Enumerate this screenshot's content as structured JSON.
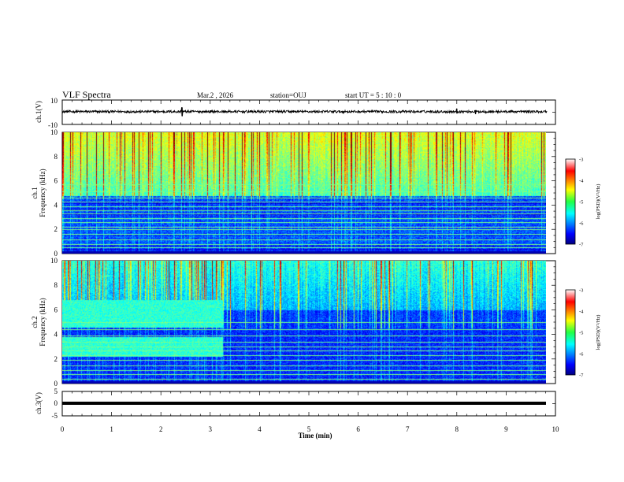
{
  "header": {
    "title": "VLF Spectra",
    "date": "Mar.2 , 2026",
    "station": "station=OUJ",
    "start_time": "start UT = 5 : 10 : 0"
  },
  "chart_data": [
    {
      "type": "line",
      "name": "ch1-waveform",
      "ylabel": "ch.1(V)",
      "ylim": [
        -10,
        10
      ],
      "y_tick_labels": [
        "10",
        "-10"
      ],
      "baseline": 0.5,
      "noise_amplitude": 1.0,
      "spikes": [
        {
          "x": 2.43,
          "min": -3.0,
          "max": 4.0
        },
        {
          "x": 8.0,
          "min": -1.0,
          "max": 3.0
        },
        {
          "x": 8.38,
          "min": -1.5,
          "max": 1.5
        }
      ]
    },
    {
      "type": "heatmap",
      "name": "ch1-spectrogram",
      "ylabel": "ch.1 Frequency (kHz)",
      "ylabel_line1": "ch.1",
      "ylabel_line2": "Frequency (kHz)",
      "ylim": [
        0,
        10
      ],
      "y_tick_labels": [
        "0",
        "2",
        "4",
        "6",
        "8",
        "10"
      ],
      "colorbar": {
        "label": "log(PSD)(V²/Hz)",
        "range": [
          -7,
          -3
        ],
        "tick_labels": [
          "-3",
          "-4",
          "-5",
          "-6",
          "-7"
        ]
      },
      "tone_lines_khz": [
        0.5,
        0.8,
        1.2,
        1.6,
        2.0,
        2.2,
        2.6,
        2.9,
        3.3,
        3.6,
        3.9,
        4.3,
        4.6,
        5.1,
        5.7
      ],
      "band_boundary_khz": 4.8
    },
    {
      "type": "heatmap",
      "name": "ch2-spectrogram",
      "ylabel": "ch.2 Frequency (kHz)",
      "ylabel_line1": "ch.2",
      "ylabel_line2": "Frequency (kHz)",
      "ylim": [
        0,
        10
      ],
      "y_tick_labels": [
        "0",
        "2",
        "4",
        "6",
        "8",
        "10"
      ],
      "colorbar": {
        "label": "log(PSD)(V²/Hz)",
        "range": [
          -7,
          -3
        ],
        "tick_labels": [
          "-3",
          "-4",
          "-5",
          "-6",
          "-7"
        ]
      },
      "tone_lines_khz": [
        0.4,
        0.8,
        1.1,
        1.5,
        1.9,
        2.3,
        2.7,
        3.0,
        3.4,
        3.9,
        4.4,
        5.0
      ],
      "interference_blocks": [
        {
          "t_start": 0.0,
          "t_end": 3.25,
          "f_low": 2.2,
          "f_high": 3.8
        },
        {
          "t_start": 0.0,
          "t_end": 3.25,
          "f_low": 4.6,
          "f_high": 6.8
        }
      ]
    },
    {
      "type": "line",
      "name": "ch3-waveform",
      "ylabel": "ch.3(V)",
      "ylim": [
        -5,
        5
      ],
      "y_tick_labels": [
        "5",
        "0",
        "-5"
      ],
      "baseline": 0.0
    }
  ],
  "x_axis": {
    "label": "Time (min)",
    "range": [
      0,
      10
    ],
    "data_end": 9.83,
    "tick_labels": [
      "0",
      "1",
      "2",
      "3",
      "4",
      "5",
      "6",
      "7",
      "8",
      "9",
      "10"
    ]
  },
  "colors": {
    "background": "#ffffff",
    "axis": "#000000",
    "waveform": "#000000"
  }
}
